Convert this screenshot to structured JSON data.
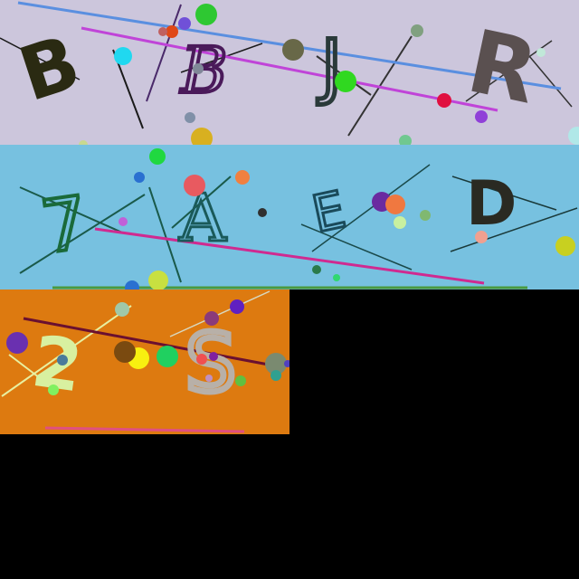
{
  "canvas": {
    "background": "#000000"
  },
  "panels": [
    {
      "name": "captcha-panel-1",
      "background": "#ccc6dc",
      "letters": [
        "B",
        "B",
        "J",
        "R"
      ]
    },
    {
      "name": "captcha-panel-2",
      "background": "#77c1e0",
      "letters": [
        "7",
        "A",
        "E",
        "D"
      ]
    },
    {
      "name": "captcha-panel-3",
      "background": "#dd7a10",
      "letters": [
        "2",
        "S"
      ]
    }
  ]
}
